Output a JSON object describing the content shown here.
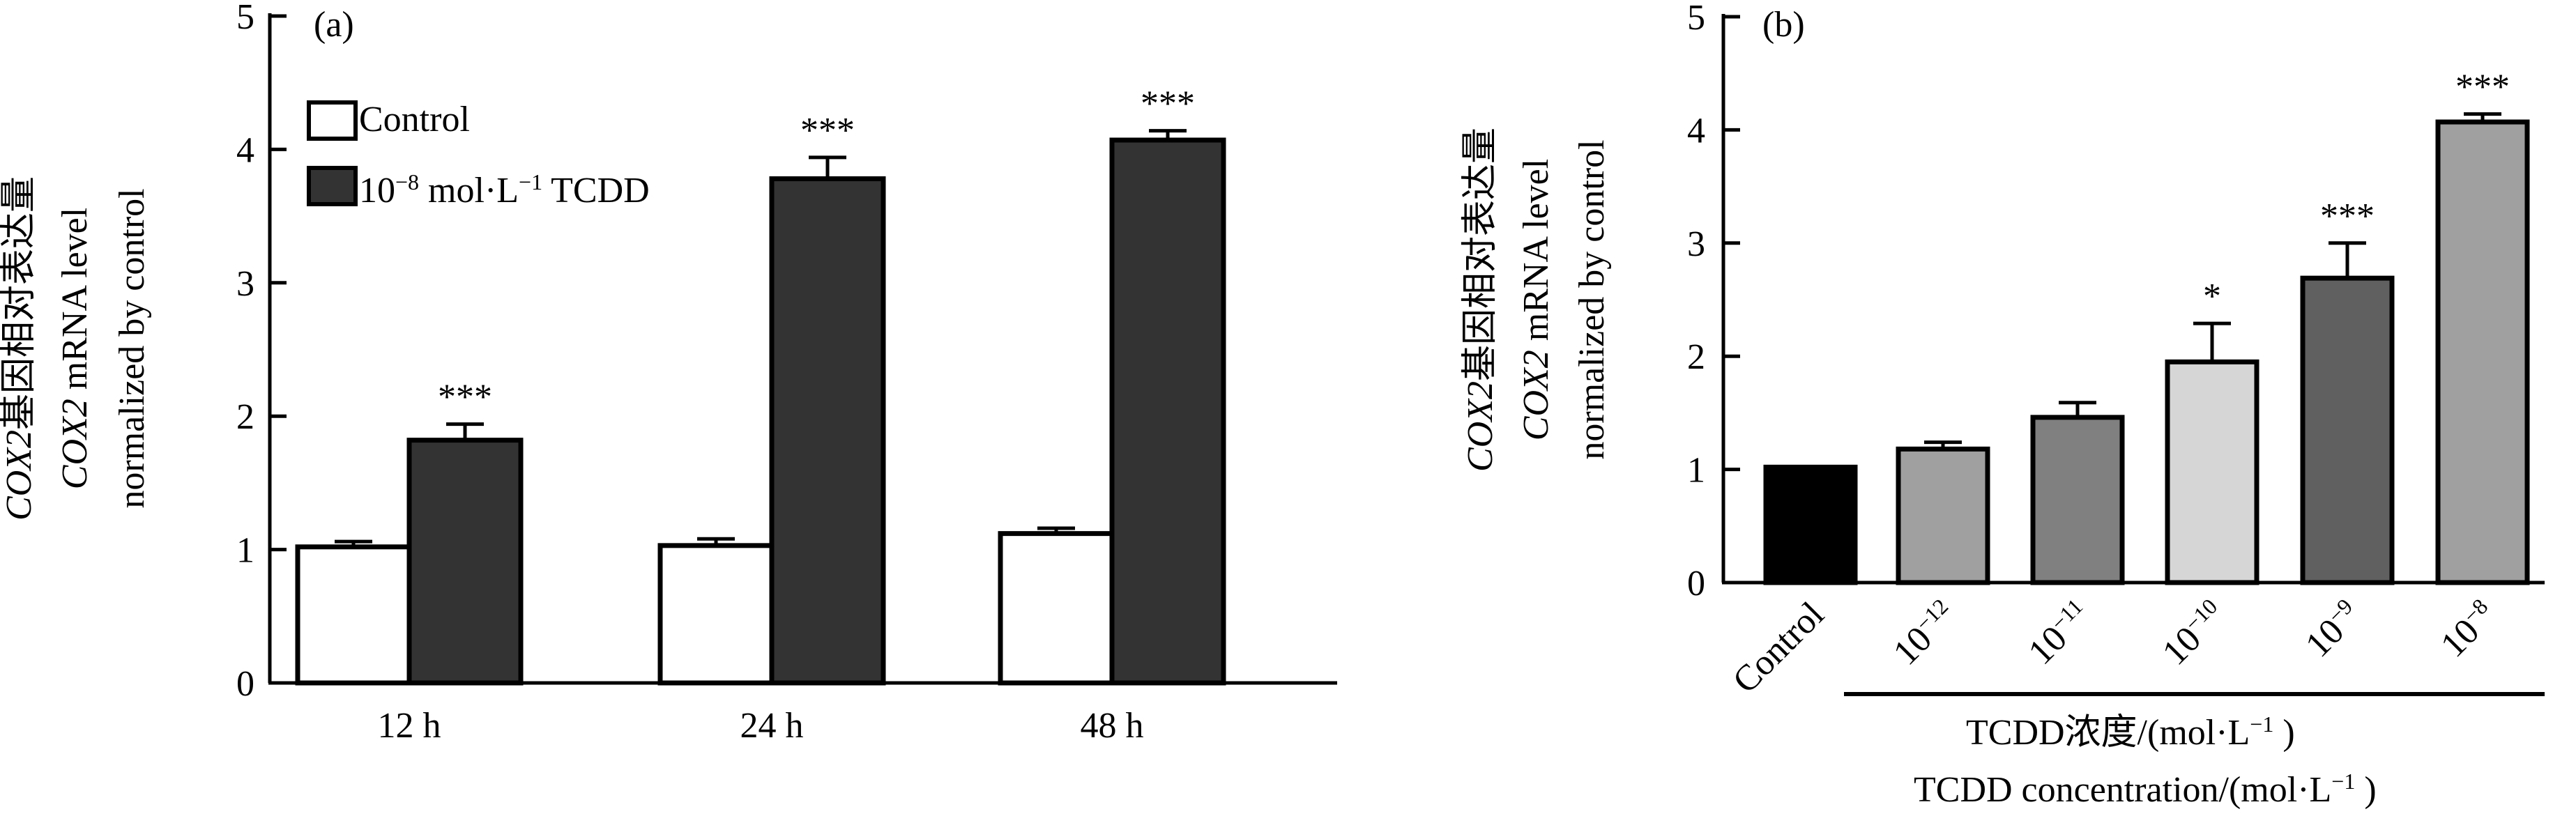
{
  "chart_data": [
    {
      "panel_label": "(a)",
      "type": "bar",
      "ylim": [
        0,
        5
      ],
      "yticks": [
        "0",
        "1",
        "2",
        "3",
        "4",
        "5"
      ],
      "ylabel_lines": [
        "COX2基因相对表达量",
        "COX2 mRNA level",
        "normalized by control"
      ],
      "categories": [
        "12 h",
        "24 h",
        "48 h"
      ],
      "legend_position": "top-left",
      "series": [
        {
          "name": "Control",
          "color": "#ffffff",
          "values": [
            1.02,
            1.03,
            1.12
          ],
          "errors": [
            0.04,
            0.05,
            0.04
          ],
          "significance": [
            "",
            "",
            ""
          ]
        },
        {
          "name": "10⁻⁸ mol·L⁻¹ TCDD",
          "color": "#333333",
          "values": [
            1.82,
            3.78,
            4.07
          ],
          "errors": [
            0.12,
            0.16,
            0.07
          ],
          "significance": [
            "***",
            "***",
            "***"
          ]
        }
      ]
    },
    {
      "panel_label": "(b)",
      "type": "bar",
      "ylim": [
        0,
        5
      ],
      "yticks": [
        "0",
        "1",
        "2",
        "3",
        "4",
        "5"
      ],
      "ylabel_lines": [
        "COX2基因相对表达量",
        "COX2 mRNA level",
        "normalized by control"
      ],
      "categories": [
        {
          "base": "Control",
          "exp": ""
        },
        {
          "base": "10",
          "exp": "−12"
        },
        {
          "base": "10",
          "exp": "−11"
        },
        {
          "base": "10",
          "exp": "−10"
        },
        {
          "base": "10",
          "exp": "−9"
        },
        {
          "base": "10",
          "exp": "−8"
        }
      ],
      "values": [
        1.02,
        1.18,
        1.46,
        1.95,
        2.69,
        4.07
      ],
      "errors": [
        0.0,
        0.06,
        0.13,
        0.34,
        0.31,
        0.07
      ],
      "colors": [
        "#000000",
        "#a0a0a0",
        "#808080",
        "#d6d6d6",
        "#606060",
        "#a0a0a0"
      ],
      "significance": [
        "",
        "",
        "",
        "*",
        "***",
        "***"
      ],
      "xlabel_lines": [
        "TCDD浓度/(mol·L⁻¹ )",
        "TCDD concentration/(mol·L⁻¹ )"
      ]
    }
  ]
}
